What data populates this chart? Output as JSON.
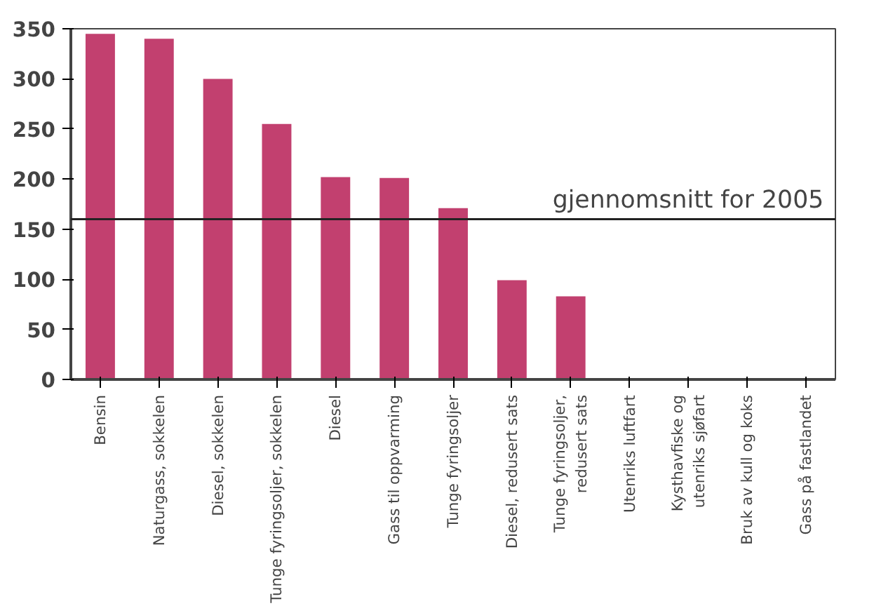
{
  "chart_data": {
    "type": "bar",
    "categories": [
      "Bensin",
      "Naturgass, sokkelen",
      "Diesel, sokkelen",
      "Tunge fyringsoljer, sokkelen",
      "Diesel",
      "Gass til oppvarming",
      "Tunge fyringsoljer",
      "Diesel, redusert sats",
      "Tunge fyringsoljer,\nredusert sats",
      "Utenriks luftfart",
      "Kysthavfiske og\nutenriks sjøfart",
      "Bruk av kull og koks",
      "Gass på fastlandet"
    ],
    "values": [
      345,
      340,
      300,
      255,
      202,
      201,
      171,
      99,
      83,
      0,
      0,
      0,
      0
    ],
    "color": "#c2406f",
    "ylim": [
      0,
      350
    ],
    "yticks": [
      0,
      50,
      100,
      150,
      200,
      250,
      300,
      350
    ],
    "grid": false,
    "ref_lines": [
      {
        "axis": "y",
        "value": 160,
        "label": "gjennomsnitt for 2005",
        "color": "#222222"
      }
    ]
  }
}
